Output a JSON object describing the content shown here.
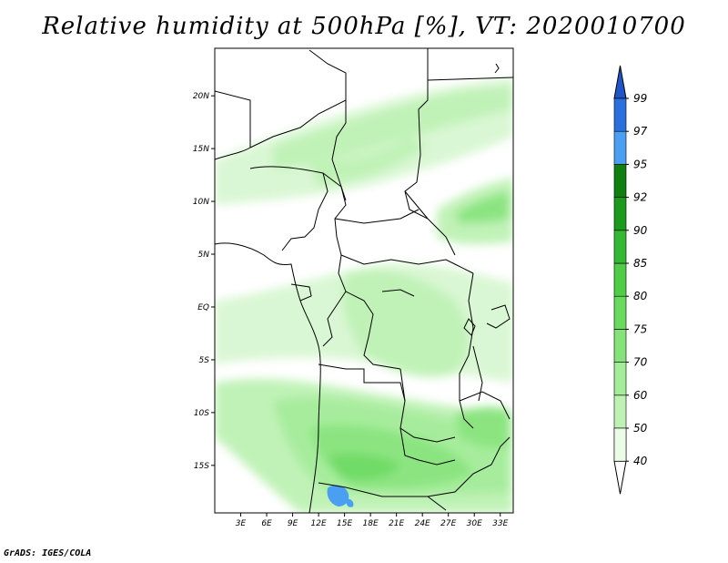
{
  "title": "Relative humidity at 500hPa [%], VT: 2020010700",
  "credit": "GrADS: IGES/COLA",
  "map": {
    "region": "Central Africa",
    "lon_range": [
      0,
      34.5
    ],
    "lat_range": [
      -19.5,
      24.5
    ],
    "lat_ticks": [
      {
        "value": 20,
        "label": "20N"
      },
      {
        "value": 15,
        "label": "15N"
      },
      {
        "value": 10,
        "label": "10N"
      },
      {
        "value": 5,
        "label": "5N"
      },
      {
        "value": 0,
        "label": "EQ"
      },
      {
        "value": -5,
        "label": "5S"
      },
      {
        "value": -10,
        "label": "10S"
      },
      {
        "value": -15,
        "label": "15S"
      }
    ],
    "lon_ticks": [
      {
        "value": 3,
        "label": "3E"
      },
      {
        "value": 6,
        "label": "6E"
      },
      {
        "value": 9,
        "label": "9E"
      },
      {
        "value": 12,
        "label": "12E"
      },
      {
        "value": 15,
        "label": "15E"
      },
      {
        "value": 18,
        "label": "18E"
      },
      {
        "value": 21,
        "label": "21E"
      },
      {
        "value": 24,
        "label": "24E"
      },
      {
        "value": 27,
        "label": "27E"
      },
      {
        "value": 30,
        "label": "30E"
      },
      {
        "value": 33,
        "label": "33E"
      }
    ]
  },
  "colorbar": {
    "levels": [
      {
        "label": "40",
        "color": "#eafbe6"
      },
      {
        "label": "50",
        "color": "#d8f7d2"
      },
      {
        "label": "60",
        "color": "#bdf2b4"
      },
      {
        "label": "70",
        "color": "#a3ec98"
      },
      {
        "label": "75",
        "color": "#86e37a"
      },
      {
        "label": "80",
        "color": "#69da5e"
      },
      {
        "label": "85",
        "color": "#4fcd47"
      },
      {
        "label": "90",
        "color": "#35b832"
      },
      {
        "label": "92",
        "color": "#1c9a1c"
      },
      {
        "label": "95",
        "color": "#0f7f10"
      },
      {
        "label": "97",
        "color": "#4a9ff2"
      },
      {
        "label": "99",
        "color": "#2a6fde"
      }
    ],
    "low_color": "#ffffff",
    "high_color": "#1e55c8"
  }
}
